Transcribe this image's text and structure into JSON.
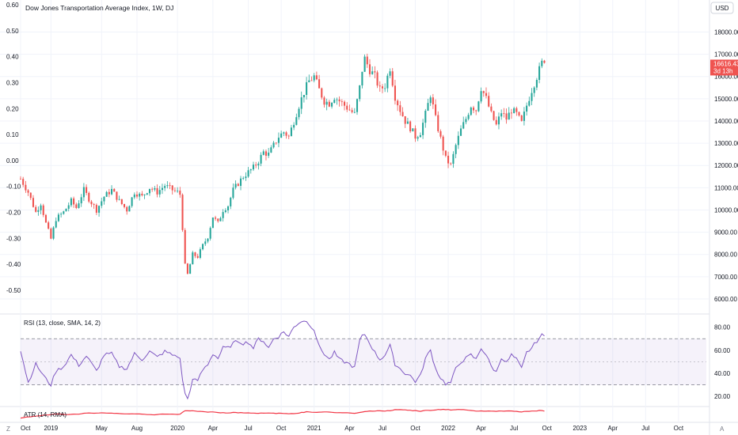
{
  "colors": {
    "up": "#26a69a",
    "down": "#ef5350",
    "rsi": "#7e57c2",
    "rsi_band": "#7e57c21a",
    "atr": "#f23645",
    "price_tag": "#ef5350"
  },
  "header": {
    "title": "Dow Jones Transportation Average Index, 1W, DJ",
    "currency": "USD"
  },
  "last_price": {
    "value": "16616.43",
    "countdown": "3d 13h"
  },
  "rsi_pane": {
    "title": "RSI (13, close, SMA, 14, 2)",
    "ticks": [
      "80.00",
      "60.00",
      "40.00",
      "20.00"
    ],
    "upper": 70,
    "middle": 50,
    "lower": 30,
    "ylim": [
      14,
      88
    ]
  },
  "atr_pane": {
    "title": "ATR (14, RMA)"
  },
  "corner_buttons": {
    "left": "Z",
    "right": "A"
  },
  "chart_data": {
    "type": "candlestick",
    "title": "Dow Jones Transportation Average Index, 1W, DJ",
    "left_axis_ticks": [
      "0.60",
      "0.50",
      "0.40",
      "0.30",
      "0.20",
      "0.10",
      "0.00",
      "-0.10",
      "-0.20",
      "-0.30",
      "-0.40",
      "-0.50"
    ],
    "right_axis_ticks": [
      "18000.00",
      "17000.00",
      "16000.00",
      "15000.00",
      "14000.00",
      "13000.00",
      "12000.00",
      "11000.00",
      "10000.00",
      "9000.00",
      "8000.00",
      "7000.00",
      "6000.00"
    ],
    "price_ylim": [
      5500,
      18800
    ],
    "x_ticks": [
      "Oct",
      "2019",
      "May",
      "Aug",
      "2020",
      "Apr",
      "Jul",
      "Oct",
      "2021",
      "Apr",
      "Jul",
      "Oct",
      "2022",
      "Apr",
      "Jul",
      "Oct",
      "2023",
      "Apr",
      "Jul",
      "Oct"
    ],
    "x_tick_weeks": [
      0,
      12,
      32,
      46,
      62,
      76,
      90,
      103,
      116,
      130,
      143,
      156,
      169,
      182,
      195,
      208,
      221,
      234,
      247,
      260
    ],
    "total_weeks": 271,
    "anchors": [
      [
        0,
        11400
      ],
      [
        3,
        10800
      ],
      [
        6,
        9900
      ],
      [
        8,
        10300
      ],
      [
        10,
        9400
      ],
      [
        12,
        8700
      ],
      [
        14,
        9600
      ],
      [
        17,
        9900
      ],
      [
        20,
        10400
      ],
      [
        22,
        10100
      ],
      [
        25,
        10900
      ],
      [
        27,
        10500
      ],
      [
        30,
        10000
      ],
      [
        33,
        10600
      ],
      [
        36,
        10900
      ],
      [
        39,
        10400
      ],
      [
        42,
        10000
      ],
      [
        45,
        10800
      ],
      [
        48,
        10600
      ],
      [
        51,
        11000
      ],
      [
        54,
        10800
      ],
      [
        57,
        11100
      ],
      [
        60,
        10900
      ],
      [
        62,
        10800
      ],
      [
        63,
        10700
      ],
      [
        64,
        9200
      ],
      [
        65,
        7500
      ],
      [
        66,
        7100
      ],
      [
        68,
        8000
      ],
      [
        70,
        7900
      ],
      [
        72,
        8400
      ],
      [
        74,
        8800
      ],
      [
        76,
        9700
      ],
      [
        78,
        9400
      ],
      [
        80,
        10000
      ],
      [
        82,
        10200
      ],
      [
        84,
        10900
      ],
      [
        86,
        11200
      ],
      [
        88,
        11500
      ],
      [
        90,
        11700
      ],
      [
        92,
        11900
      ],
      [
        94,
        12200
      ],
      [
        96,
        12600
      ],
      [
        98,
        12500
      ],
      [
        100,
        12900
      ],
      [
        102,
        13300
      ],
      [
        104,
        13500
      ],
      [
        106,
        13300
      ],
      [
        108,
        14000
      ],
      [
        110,
        14700
      ],
      [
        112,
        15300
      ],
      [
        114,
        15800
      ],
      [
        116,
        16000
      ],
      [
        118,
        15400
      ],
      [
        120,
        14900
      ],
      [
        122,
        14800
      ],
      [
        124,
        15100
      ],
      [
        126,
        14900
      ],
      [
        128,
        14700
      ],
      [
        130,
        14500
      ],
      [
        132,
        14300
      ],
      [
        134,
        15500
      ],
      [
        135,
        16300
      ],
      [
        136,
        16800
      ],
      [
        138,
        16300
      ],
      [
        140,
        16000
      ],
      [
        142,
        15400
      ],
      [
        144,
        15600
      ],
      [
        146,
        16400
      ],
      [
        148,
        15100
      ],
      [
        150,
        14500
      ],
      [
        152,
        14000
      ],
      [
        154,
        13700
      ],
      [
        156,
        13300
      ],
      [
        158,
        13500
      ],
      [
        160,
        14300
      ],
      [
        162,
        15200
      ],
      [
        164,
        14100
      ],
      [
        166,
        13200
      ],
      [
        168,
        12300
      ],
      [
        170,
        12000
      ],
      [
        172,
        12900
      ],
      [
        174,
        13600
      ],
      [
        176,
        14100
      ],
      [
        178,
        14700
      ],
      [
        180,
        14500
      ],
      [
        182,
        15500
      ],
      [
        184,
        15000
      ],
      [
        186,
        14300
      ],
      [
        188,
        13800
      ],
      [
        190,
        14400
      ],
      [
        192,
        14100
      ],
      [
        194,
        14500
      ],
      [
        196,
        14300
      ],
      [
        198,
        13900
      ],
      [
        200,
        14700
      ],
      [
        202,
        15400
      ],
      [
        204,
        16000
      ],
      [
        206,
        16600
      ],
      [
        207,
        16616
      ]
    ],
    "rsi_anchors": [
      [
        0,
        60
      ],
      [
        3,
        32
      ],
      [
        6,
        48
      ],
      [
        10,
        35
      ],
      [
        12,
        30
      ],
      [
        14,
        42
      ],
      [
        17,
        46
      ],
      [
        20,
        56
      ],
      [
        23,
        47
      ],
      [
        26,
        55
      ],
      [
        30,
        42
      ],
      [
        33,
        56
      ],
      [
        36,
        57
      ],
      [
        39,
        46
      ],
      [
        42,
        44
      ],
      [
        45,
        57
      ],
      [
        48,
        52
      ],
      [
        51,
        59
      ],
      [
        54,
        54
      ],
      [
        57,
        59
      ],
      [
        60,
        56
      ],
      [
        62,
        55
      ],
      [
        63,
        52
      ],
      [
        64,
        35
      ],
      [
        65,
        22
      ],
      [
        66,
        18
      ],
      [
        68,
        34
      ],
      [
        70,
        34
      ],
      [
        72,
        43
      ],
      [
        74,
        48
      ],
      [
        76,
        57
      ],
      [
        78,
        53
      ],
      [
        80,
        62
      ],
      [
        82,
        62
      ],
      [
        84,
        66
      ],
      [
        86,
        68
      ],
      [
        88,
        66
      ],
      [
        90,
        67
      ],
      [
        92,
        62
      ],
      [
        94,
        70
      ],
      [
        96,
        68
      ],
      [
        98,
        62
      ],
      [
        100,
        70
      ],
      [
        102,
        72
      ],
      [
        104,
        76
      ],
      [
        106,
        72
      ],
      [
        108,
        80
      ],
      [
        110,
        84
      ],
      [
        112,
        86
      ],
      [
        114,
        83
      ],
      [
        116,
        78
      ],
      [
        118,
        63
      ],
      [
        120,
        57
      ],
      [
        122,
        52
      ],
      [
        124,
        58
      ],
      [
        126,
        52
      ],
      [
        128,
        50
      ],
      [
        130,
        48
      ],
      [
        132,
        45
      ],
      [
        134,
        68
      ],
      [
        135,
        72
      ],
      [
        136,
        74
      ],
      [
        138,
        66
      ],
      [
        140,
        58
      ],
      [
        142,
        52
      ],
      [
        144,
        56
      ],
      [
        146,
        64
      ],
      [
        148,
        48
      ],
      [
        150,
        44
      ],
      [
        152,
        40
      ],
      [
        154,
        38
      ],
      [
        156,
        33
      ],
      [
        158,
        38
      ],
      [
        160,
        53
      ],
      [
        162,
        60
      ],
      [
        164,
        44
      ],
      [
        166,
        36
      ],
      [
        168,
        31
      ],
      [
        170,
        32
      ],
      [
        172,
        44
      ],
      [
        174,
        50
      ],
      [
        176,
        53
      ],
      [
        178,
        56
      ],
      [
        180,
        52
      ],
      [
        182,
        62
      ],
      [
        184,
        56
      ],
      [
        186,
        46
      ],
      [
        188,
        41
      ],
      [
        190,
        54
      ],
      [
        192,
        49
      ],
      [
        194,
        56
      ],
      [
        196,
        52
      ],
      [
        198,
        44
      ],
      [
        200,
        58
      ],
      [
        202,
        62
      ],
      [
        204,
        68
      ],
      [
        206,
        73
      ],
      [
        207,
        72
      ]
    ]
  }
}
